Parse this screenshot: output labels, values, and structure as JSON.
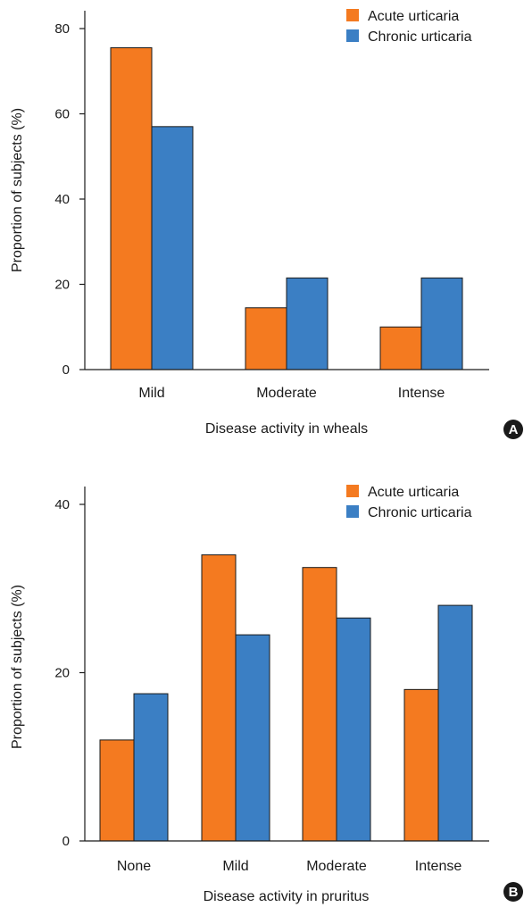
{
  "chart_data": [
    {
      "type": "bar",
      "panel": "A",
      "categories": [
        "Mild",
        "Moderate",
        "Intense"
      ],
      "series": [
        {
          "name": "Acute urticaria",
          "color": "#F47A20",
          "values": [
            75.5,
            14.5,
            10
          ]
        },
        {
          "name": "Chronic urticaria",
          "color": "#3B7FC4",
          "values": [
            57,
            21.5,
            21.5
          ]
        }
      ],
      "xlabel": "Disease activity in wheals",
      "ylabel": "Proportion of subjects (%)",
      "ylim": [
        0,
        80
      ],
      "yticks": [
        0,
        20,
        40,
        60,
        80
      ],
      "legend": "top-right",
      "grid": false
    },
    {
      "type": "bar",
      "panel": "B",
      "categories": [
        "None",
        "Mild",
        "Moderate",
        "Intense"
      ],
      "series": [
        {
          "name": "Acute urticaria",
          "color": "#F47A20",
          "values": [
            12,
            34,
            32.5,
            18
          ]
        },
        {
          "name": "Chronic urticaria",
          "color": "#3B7FC4",
          "values": [
            17.5,
            24.5,
            26.5,
            28
          ]
        }
      ],
      "xlabel": "Disease activity in pruritus",
      "ylabel": "Proportion of subjects (%)",
      "ylim": [
        0,
        40
      ],
      "yticks": [
        0,
        20,
        40
      ],
      "legend": "top-right",
      "grid": false
    }
  ]
}
